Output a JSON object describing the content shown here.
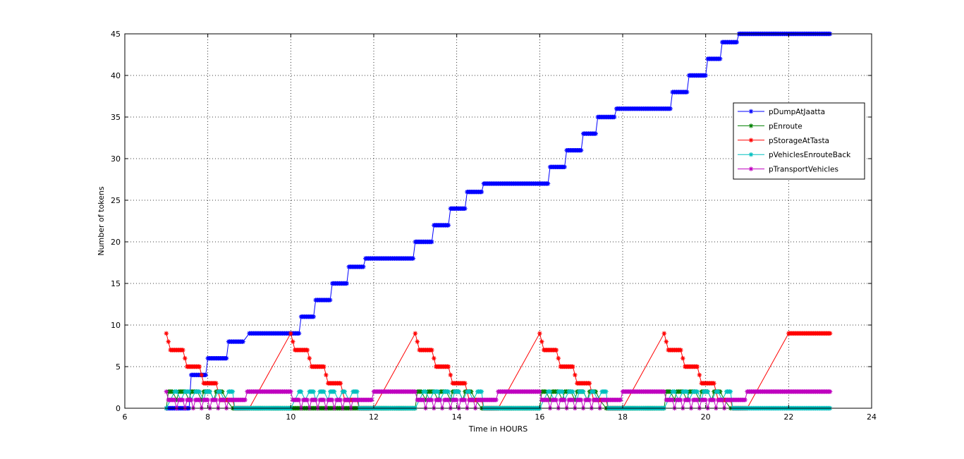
{
  "chart_data": {
    "type": "line",
    "title": "",
    "xlabel": "Time in HOURS",
    "ylabel": "Number of tokens",
    "xlim": [
      6,
      24
    ],
    "ylim": [
      0,
      45
    ],
    "xticks": [
      6,
      8,
      10,
      12,
      14,
      16,
      18,
      20,
      22,
      24
    ],
    "yticks": [
      0,
      5,
      10,
      15,
      20,
      25,
      30,
      35,
      40,
      45
    ],
    "grid": true,
    "legend_position": "top-right",
    "series": [
      {
        "name": "pDumpAtJaatta",
        "color": "#0000ff",
        "marker": "asterisk",
        "x": [
          7.0,
          7.55,
          7.6,
          7.95,
          8.0,
          8.45,
          8.5,
          8.85,
          9.0,
          10.2,
          10.25,
          10.55,
          10.6,
          10.95,
          11.0,
          11.35,
          11.4,
          11.75,
          11.8,
          12.95,
          13.0,
          13.4,
          13.45,
          13.8,
          13.85,
          14.2,
          14.25,
          14.6,
          14.65,
          14.95,
          15.0,
          16.2,
          16.25,
          16.6,
          16.65,
          17.0,
          17.05,
          17.35,
          17.4,
          17.8,
          17.85,
          19.15,
          19.2,
          19.55,
          19.6,
          20.0,
          20.05,
          20.35,
          20.4,
          20.75,
          20.8,
          23.0
        ],
        "y": [
          0,
          0,
          4,
          4,
          6,
          6,
          8,
          8,
          9,
          9,
          11,
          11,
          13,
          13,
          15,
          15,
          17,
          17,
          18,
          18,
          20,
          20,
          22,
          22,
          24,
          24,
          26,
          26,
          27,
          27,
          27,
          27,
          29,
          29,
          31,
          31,
          33,
          33,
          35,
          35,
          36,
          36,
          38,
          38,
          40,
          40,
          42,
          42,
          44,
          44,
          45,
          45
        ]
      },
      {
        "name": "pEnroute",
        "color": "#008000",
        "marker": "asterisk",
        "x": [
          7.0,
          7.05,
          7.15,
          7.25,
          7.3,
          7.45,
          7.55,
          7.6,
          7.75,
          7.85,
          7.9,
          8.05,
          8.15,
          8.2,
          8.35,
          8.45,
          8.6,
          13.0,
          13.05,
          13.15,
          13.25,
          13.3,
          13.45,
          13.55,
          13.6,
          13.75,
          13.85,
          13.9,
          14.05,
          14.15,
          14.2,
          14.35,
          14.45,
          14.6,
          16.0,
          16.05,
          16.15,
          16.25,
          16.3,
          16.45,
          16.55,
          16.6,
          16.75,
          16.85,
          16.9,
          17.05,
          17.15,
          17.2,
          17.35,
          17.45,
          17.6,
          19.0,
          19.05,
          19.15,
          19.25,
          19.3,
          19.45,
          19.55,
          19.6,
          19.75,
          19.85,
          19.9,
          20.05,
          20.15,
          20.2,
          20.35,
          20.45,
          20.6
        ],
        "y": [
          0,
          2,
          2,
          1,
          2,
          2,
          1,
          2,
          2,
          1,
          2,
          2,
          1,
          2,
          2,
          1,
          0,
          0,
          2,
          2,
          1,
          2,
          2,
          1,
          2,
          2,
          1,
          2,
          2,
          1,
          2,
          2,
          1,
          0,
          0,
          2,
          2,
          1,
          2,
          2,
          1,
          2,
          2,
          1,
          2,
          2,
          1,
          2,
          2,
          1,
          0,
          0,
          2,
          2,
          1,
          2,
          2,
          1,
          2,
          2,
          1,
          2,
          2,
          1,
          2,
          2,
          1,
          0
        ]
      },
      {
        "name": "pStorageAtTasta",
        "color": "#ff0000",
        "marker": "asterisk",
        "x": [
          7.0,
          7.05,
          7.1,
          7.4,
          7.45,
          7.5,
          7.8,
          7.85,
          7.9,
          8.2,
          8.25,
          8.3,
          8.6,
          8.65,
          8.9,
          9.0,
          10.0,
          10.05,
          10.1,
          10.4,
          10.45,
          10.5,
          10.8,
          10.85,
          10.9,
          11.2,
          11.25,
          11.3,
          11.6,
          11.65,
          11.9,
          12.0,
          13.0,
          13.05,
          13.1,
          13.4,
          13.45,
          13.5,
          13.8,
          13.85,
          13.9,
          14.2,
          14.25,
          14.3,
          14.6,
          14.65,
          14.9,
          15.0,
          16.0,
          16.05,
          16.1,
          16.4,
          16.45,
          16.5,
          16.8,
          16.85,
          16.9,
          17.2,
          17.25,
          17.3,
          17.6,
          17.65,
          17.9,
          18.0,
          19.0,
          19.05,
          19.1,
          19.4,
          19.45,
          19.5,
          19.8,
          19.85,
          19.9,
          20.2,
          20.25,
          20.3,
          20.6,
          20.65,
          20.9,
          21.0,
          22.0,
          23.0
        ],
        "y": [
          9,
          8,
          7,
          7,
          6,
          5,
          5,
          4,
          3,
          3,
          2,
          1,
          1,
          0,
          0,
          0,
          9,
          8,
          7,
          7,
          6,
          5,
          5,
          4,
          3,
          3,
          2,
          1,
          1,
          0,
          0,
          0,
          9,
          8,
          7,
          7,
          6,
          5,
          5,
          4,
          3,
          3,
          2,
          1,
          1,
          0,
          0,
          0,
          9,
          8,
          7,
          7,
          6,
          5,
          5,
          4,
          3,
          3,
          2,
          1,
          1,
          0,
          0,
          0,
          9,
          8,
          7,
          7,
          6,
          5,
          5,
          4,
          3,
          3,
          2,
          1,
          1,
          0,
          0,
          0,
          9,
          9
        ]
      },
      {
        "name": "pVehiclesEnrouteBack",
        "color": "#00bfbf",
        "marker": "asterisk",
        "x": [
          7.0,
          7.2,
          7.25,
          7.35,
          7.45,
          7.55,
          7.6,
          7.7,
          7.8,
          7.9,
          7.95,
          8.05,
          8.15,
          8.25,
          8.3,
          8.4,
          8.5,
          8.6,
          8.65,
          10.0,
          10.2,
          10.25,
          10.35,
          10.45,
          10.55,
          10.6,
          10.7,
          10.8,
          10.9,
          10.95,
          11.05,
          11.15,
          11.25,
          11.3,
          11.4,
          11.5,
          11.6,
          11.65,
          13.0,
          13.2,
          13.25,
          13.35,
          13.45,
          13.55,
          13.6,
          13.7,
          13.8,
          13.9,
          13.95,
          14.05,
          14.15,
          14.25,
          14.3,
          14.4,
          14.5,
          14.6,
          14.65,
          16.0,
          16.2,
          16.25,
          16.35,
          16.45,
          16.55,
          16.6,
          16.7,
          16.8,
          16.9,
          16.95,
          17.05,
          17.15,
          17.25,
          17.3,
          17.4,
          17.5,
          17.6,
          17.65,
          19.0,
          19.2,
          19.25,
          19.35,
          19.45,
          19.55,
          19.6,
          19.7,
          19.8,
          19.9,
          19.95,
          20.05,
          20.15,
          20.25,
          20.3,
          20.4,
          20.5,
          20.6,
          20.65,
          23.0
        ],
        "y": [
          0,
          2,
          2,
          1,
          2,
          2,
          1,
          2,
          2,
          1,
          2,
          2,
          1,
          2,
          2,
          1,
          2,
          2,
          0,
          0,
          2,
          2,
          1,
          2,
          2,
          1,
          2,
          2,
          1,
          2,
          2,
          1,
          2,
          2,
          1,
          2,
          2,
          0,
          0,
          2,
          2,
          1,
          2,
          2,
          1,
          2,
          2,
          1,
          2,
          2,
          1,
          2,
          2,
          1,
          2,
          2,
          0,
          0,
          2,
          2,
          1,
          2,
          2,
          1,
          2,
          2,
          1,
          2,
          2,
          1,
          2,
          2,
          1,
          2,
          2,
          0,
          0,
          2,
          2,
          1,
          2,
          2,
          1,
          2,
          2,
          1,
          2,
          2,
          1,
          2,
          2,
          1,
          2,
          2,
          0,
          0
        ]
      },
      {
        "name": "pTransportVehicles",
        "color": "#bf00bf",
        "marker": "asterisk",
        "x": [
          7.0,
          7.05,
          7.2,
          7.25,
          7.3,
          7.4,
          7.45,
          7.5,
          7.6,
          7.65,
          7.7,
          7.8,
          7.85,
          7.9,
          8.0,
          8.05,
          8.1,
          8.2,
          8.25,
          8.3,
          8.4,
          8.45,
          8.5,
          8.6,
          8.65,
          8.9,
          8.95,
          9.0,
          10.0,
          10.05,
          10.2,
          10.25,
          10.3,
          10.4,
          10.45,
          10.5,
          10.6,
          10.65,
          10.7,
          10.8,
          10.85,
          10.9,
          11.0,
          11.05,
          11.1,
          11.2,
          11.25,
          11.3,
          11.4,
          11.45,
          11.5,
          11.65,
          11.95,
          12.0,
          13.0,
          13.05,
          13.2,
          13.25,
          13.3,
          13.4,
          13.45,
          13.5,
          13.6,
          13.65,
          13.7,
          13.8,
          13.85,
          13.9,
          14.0,
          14.05,
          14.1,
          14.2,
          14.25,
          14.3,
          14.4,
          14.45,
          14.5,
          14.65,
          14.95,
          15.0,
          16.0,
          16.05,
          16.2,
          16.25,
          16.3,
          16.4,
          16.45,
          16.5,
          16.6,
          16.65,
          16.7,
          16.8,
          16.85,
          16.9,
          17.0,
          17.05,
          17.1,
          17.2,
          17.25,
          17.3,
          17.4,
          17.45,
          17.5,
          17.65,
          17.95,
          18.0,
          19.0,
          19.05,
          19.2,
          19.25,
          19.3,
          19.4,
          19.45,
          19.5,
          19.6,
          19.65,
          19.7,
          19.8,
          19.85,
          19.9,
          20.0,
          20.05,
          20.1,
          20.2,
          20.25,
          20.3,
          20.4,
          20.45,
          20.5,
          20.65,
          20.95,
          21.0,
          23.0
        ],
        "y": [
          2,
          1,
          1,
          0,
          1,
          1,
          0,
          1,
          1,
          0,
          1,
          1,
          0,
          1,
          1,
          0,
          1,
          1,
          0,
          1,
          1,
          0,
          1,
          1,
          1,
          1,
          2,
          2,
          2,
          1,
          1,
          0,
          1,
          1,
          0,
          1,
          1,
          0,
          1,
          1,
          0,
          1,
          1,
          0,
          1,
          1,
          0,
          1,
          1,
          0,
          1,
          1,
          1,
          2,
          2,
          1,
          1,
          0,
          1,
          1,
          0,
          1,
          1,
          0,
          1,
          1,
          0,
          1,
          1,
          0,
          1,
          1,
          0,
          1,
          1,
          0,
          1,
          1,
          1,
          2,
          2,
          1,
          1,
          0,
          1,
          1,
          0,
          1,
          1,
          0,
          1,
          1,
          0,
          1,
          1,
          0,
          1,
          1,
          0,
          1,
          1,
          0,
          1,
          1,
          1,
          2,
          2,
          1,
          1,
          0,
          1,
          1,
          0,
          1,
          1,
          0,
          1,
          1,
          0,
          1,
          1,
          0,
          1,
          1,
          0,
          1,
          1,
          0,
          1,
          1,
          1,
          2,
          2
        ]
      }
    ]
  }
}
